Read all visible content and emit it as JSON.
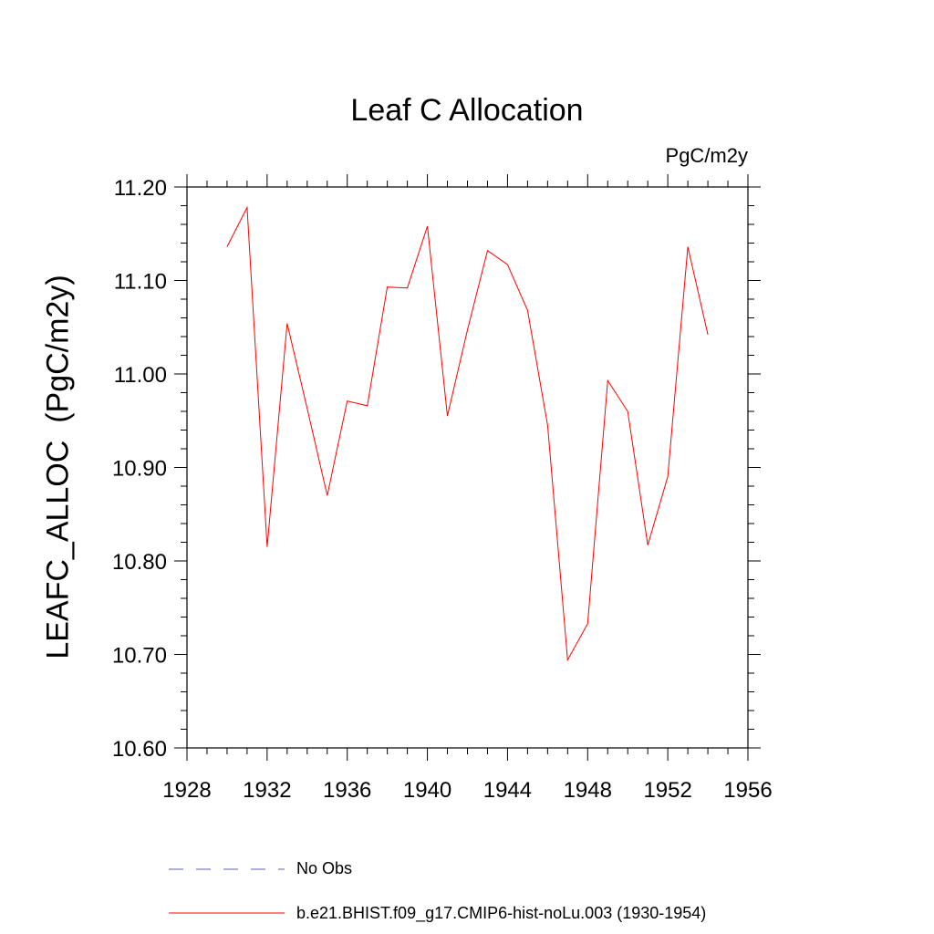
{
  "chart_data": {
    "type": "line",
    "title": "Leaf C Allocation",
    "units_label": "PgC/m2y",
    "ylabel": "LEAFC_ALLOC  (PgC/m2y)",
    "xlabel": "",
    "xlim": [
      1928,
      1956
    ],
    "ylim": [
      10.6,
      11.2
    ],
    "x_ticks": [
      "1928",
      "1932",
      "1936",
      "1940",
      "1944",
      "1948",
      "1952",
      "1956"
    ],
    "y_ticks": [
      "10.60",
      "10.70",
      "10.80",
      "10.90",
      "11.00",
      "11.10",
      "11.20"
    ],
    "x_tick_values": [
      1928,
      1932,
      1936,
      1940,
      1944,
      1948,
      1952,
      1956
    ],
    "y_tick_values": [
      10.6,
      10.7,
      10.8,
      10.9,
      11.0,
      11.1,
      11.2
    ],
    "grid": false,
    "legend_position": "bottom",
    "series": [
      {
        "name": "b.e21.BHIST.f09_g17.CMIP6-hist-noLu.003 (1930-1954)",
        "color": "#ff0000",
        "style": "solid",
        "x": [
          1930,
          1931,
          1932,
          1933,
          1934,
          1935,
          1936,
          1937,
          1938,
          1939,
          1940,
          1941,
          1942,
          1943,
          1944,
          1945,
          1946,
          1947,
          1948,
          1949,
          1950,
          1951,
          1952,
          1953,
          1954
        ],
        "y": [
          11.136,
          11.178,
          10.815,
          11.054,
          10.963,
          10.87,
          10.971,
          10.966,
          11.093,
          11.092,
          11.158,
          10.955,
          11.047,
          11.132,
          11.117,
          11.068,
          10.945,
          10.694,
          10.733,
          10.993,
          10.96,
          10.817,
          10.89,
          11.136,
          11.042
        ]
      }
    ],
    "legend": [
      {
        "label": "No Obs",
        "color": "#5b5bbf",
        "style": "dashed"
      },
      {
        "label": "b.e21.BHIST.f09_g17.CMIP6-hist-noLu.003 (1930-1954)",
        "color": "#ff0000",
        "style": "solid"
      }
    ]
  }
}
